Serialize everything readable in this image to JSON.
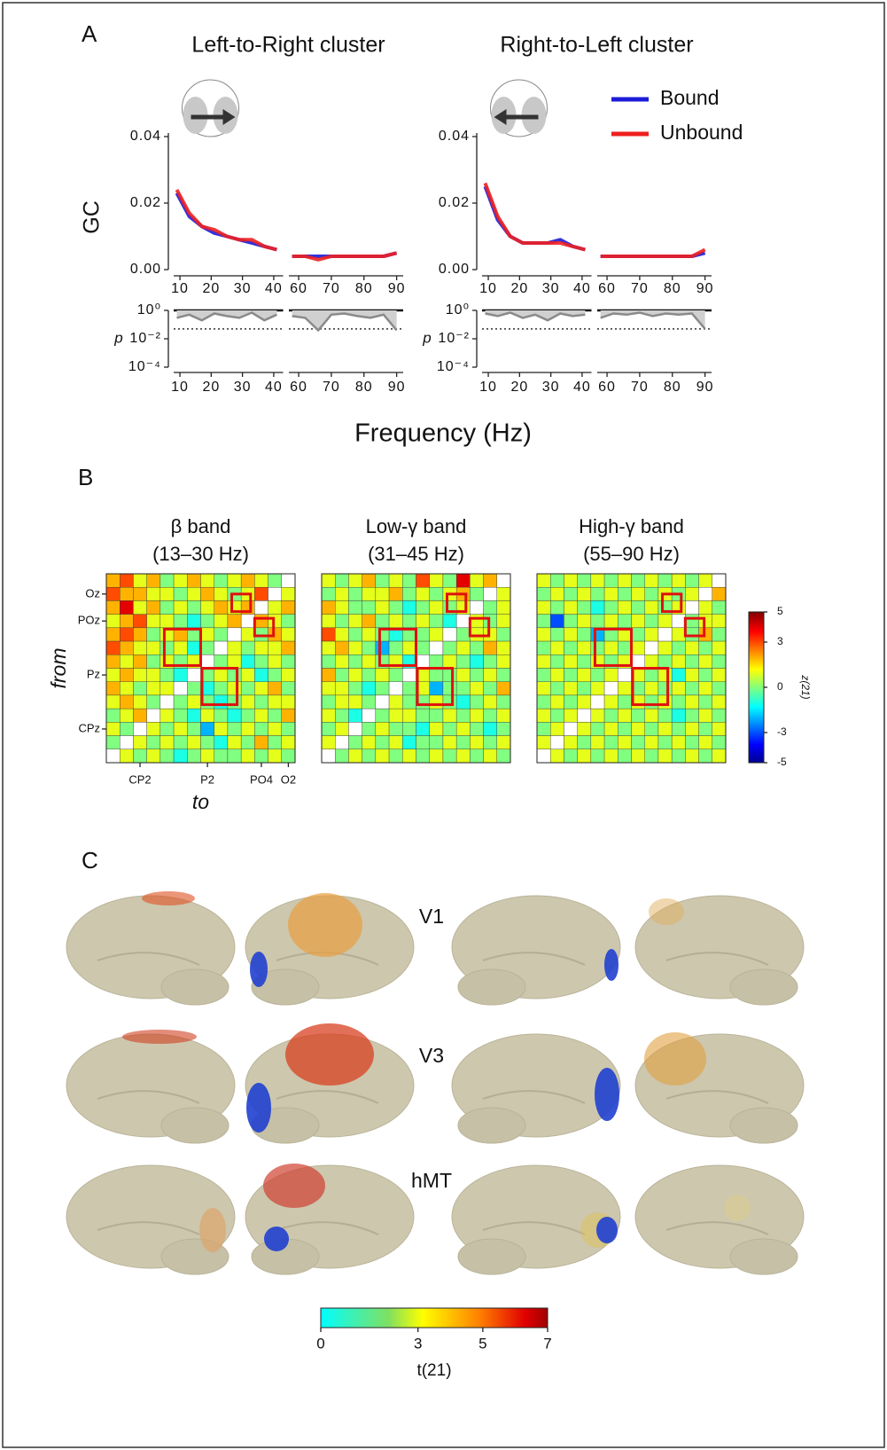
{
  "panel_labels": [
    "A",
    "B",
    "C"
  ],
  "frequency_label": "Frequency (Hz)",
  "chart_data": [
    {
      "type": "line",
      "title": "Left-to-Right cluster",
      "y_label": "GC",
      "x": [
        9,
        13,
        17,
        21,
        25,
        29,
        33,
        37,
        41,
        50,
        58,
        62,
        66,
        70,
        74,
        78,
        82,
        86,
        90
      ],
      "xlim": [
        8,
        92
      ],
      "xbreak": [
        43,
        57
      ],
      "xticks": [
        10,
        20,
        30,
        40,
        60,
        70,
        80,
        90
      ],
      "ylim": [
        0,
        0.04
      ],
      "yticks": [
        {
          "value": 0,
          "label": "0.00"
        },
        {
          "value": 0.02,
          "label": "0.02"
        },
        {
          "value": 0.04,
          "label": "0.04"
        }
      ],
      "series": [
        {
          "color": "#1c1cd8",
          "values": [
            0.023,
            0.016,
            0.013,
            0.011,
            0.01,
            0.009,
            0.008,
            0.007,
            0.006,
            null,
            0.004,
            0.004,
            0.004,
            0.004,
            0.004,
            0.004,
            0.004,
            0.004,
            0.005
          ]
        },
        {
          "color": "#ee2020",
          "values": [
            0.024,
            0.017,
            0.013,
            0.012,
            0.01,
            0.009,
            0.009,
            0.007,
            0.006,
            null,
            0.004,
            0.004,
            0.003,
            0.004,
            0.004,
            0.004,
            0.004,
            0.004,
            0.005
          ]
        }
      ],
      "p_label": "p",
      "p_color": "#8a8a8a",
      "p_log": true,
      "p_threshold": 0.05,
      "p_ylim": [
        0.0001,
        1
      ],
      "p_yticks": [
        {
          "value": 1,
          "label": "10⁰"
        },
        {
          "value": 0.01,
          "label": "10⁻²"
        },
        {
          "value": 0.0001,
          "label": "10⁻⁴"
        }
      ],
      "p_values": [
        0.3,
        0.5,
        0.2,
        0.6,
        0.4,
        0.3,
        0.7,
        0.2,
        0.5,
        null,
        0.4,
        0.3,
        0.04,
        0.5,
        0.6,
        0.4,
        0.3,
        0.5,
        0.04
      ]
    },
    {
      "type": "line",
      "title": "Right-to-Left cluster",
      "x": [
        9,
        13,
        17,
        21,
        25,
        29,
        33,
        37,
        41,
        50,
        58,
        62,
        66,
        70,
        74,
        78,
        82,
        86,
        90
      ],
      "xlim": [
        8,
        92
      ],
      "xbreak": [
        43,
        57
      ],
      "xticks": [
        10,
        20,
        30,
        40,
        60,
        70,
        80,
        90
      ],
      "ylim": [
        0,
        0.04
      ],
      "yticks": [
        {
          "value": 0,
          "label": "0.00"
        },
        {
          "value": 0.02,
          "label": "0.02"
        },
        {
          "value": 0.04,
          "label": "0.04"
        }
      ],
      "series": [
        {
          "name": "Bound",
          "color": "#1c1cd8",
          "values": [
            0.025,
            0.015,
            0.01,
            0.008,
            0.008,
            0.008,
            0.009,
            0.007,
            0.006,
            null,
            0.004,
            0.004,
            0.004,
            0.004,
            0.004,
            0.004,
            0.004,
            0.004,
            0.005
          ]
        },
        {
          "name": "Unbound",
          "color": "#ee2020",
          "values": [
            0.026,
            0.016,
            0.01,
            0.008,
            0.008,
            0.008,
            0.008,
            0.007,
            0.006,
            null,
            0.004,
            0.004,
            0.004,
            0.004,
            0.004,
            0.004,
            0.004,
            0.004,
            0.006
          ]
        }
      ],
      "p_label": "p",
      "p_color": "#8a8a8a",
      "p_log": true,
      "p_threshold": 0.05,
      "p_ylim": [
        0.0001,
        1
      ],
      "p_yticks": [
        {
          "value": 1,
          "label": "10⁰"
        },
        {
          "value": 0.01,
          "label": "10⁻²"
        },
        {
          "value": 0.0001,
          "label": "10⁻⁴"
        }
      ],
      "p_values": [
        0.6,
        0.4,
        0.7,
        0.3,
        0.5,
        0.2,
        0.6,
        0.4,
        0.5,
        null,
        0.3,
        0.6,
        0.5,
        0.7,
        0.4,
        0.6,
        0.5,
        0.6,
        0.05
      ]
    },
    {
      "type": "heatmap",
      "title": "β band",
      "subtitle": "(13–30 Hz)",
      "x_label": "to",
      "y_label": "from",
      "x_categories": [
        null,
        null,
        "CP2",
        null,
        null,
        null,
        null,
        "P2",
        null,
        null,
        null,
        "PO4",
        null,
        "O2"
      ],
      "y_categories": [
        null,
        "Oz",
        null,
        "POz",
        null,
        null,
        null,
        "Pz",
        null,
        null,
        null,
        "CPz",
        null,
        null
      ],
      "values": [
        [
          2,
          3,
          1,
          2,
          0,
          1,
          2,
          1,
          0,
          1,
          2,
          1,
          0,
          null
        ],
        [
          3,
          2,
          2,
          1,
          1,
          0,
          1,
          2,
          1,
          0,
          1,
          3,
          null,
          1
        ],
        [
          2,
          4,
          1,
          2,
          0,
          1,
          0,
          1,
          2,
          1,
          2,
          null,
          1,
          2
        ],
        [
          1,
          2,
          3,
          1,
          1,
          0,
          -1,
          0,
          1,
          2,
          null,
          2,
          1,
          0
        ],
        [
          2,
          3,
          2,
          0,
          1,
          2,
          0,
          1,
          0,
          null,
          1,
          0,
          2,
          1
        ],
        [
          3,
          2,
          1,
          1,
          0,
          1,
          -1,
          0,
          null,
          1,
          0,
          1,
          1,
          2
        ],
        [
          2,
          1,
          2,
          0,
          1,
          0,
          1,
          null,
          0,
          1,
          -1,
          0,
          1,
          0
        ],
        [
          1,
          2,
          1,
          1,
          0,
          -1,
          null,
          0,
          1,
          0,
          1,
          -1,
          0,
          1
        ],
        [
          2,
          1,
          0,
          1,
          1,
          null,
          0,
          -1,
          0,
          1,
          0,
          1,
          2,
          0
        ],
        [
          1,
          2,
          1,
          0,
          null,
          0,
          1,
          0,
          -1,
          0,
          1,
          0,
          1,
          1
        ],
        [
          0,
          1,
          2,
          null,
          1,
          0,
          -1,
          1,
          0,
          -1,
          0,
          1,
          0,
          2
        ],
        [
          1,
          0,
          null,
          1,
          0,
          1,
          0,
          -2,
          1,
          0,
          1,
          0,
          1,
          0
        ],
        [
          0,
          null,
          1,
          0,
          1,
          0,
          1,
          0,
          -1,
          1,
          0,
          2,
          0,
          1
        ],
        [
          null,
          1,
          0,
          1,
          0,
          -1,
          0,
          1,
          0,
          0,
          1,
          0,
          1,
          0
        ]
      ]
    },
    {
      "type": "heatmap",
      "title": "Low-γ band",
      "subtitle": "(31–45 Hz)",
      "values": [
        [
          1,
          0,
          1,
          2,
          0,
          1,
          0,
          3,
          1,
          0,
          4,
          1,
          2,
          null
        ],
        [
          0,
          1,
          0,
          1,
          1,
          2,
          0,
          1,
          0,
          1,
          2,
          0,
          null,
          1
        ],
        [
          2,
          1,
          0,
          0,
          1,
          0,
          -1,
          0,
          1,
          0,
          1,
          null,
          0,
          1
        ],
        [
          1,
          0,
          1,
          2,
          0,
          1,
          0,
          1,
          0,
          -1,
          null,
          1,
          0,
          1
        ],
        [
          3,
          1,
          0,
          1,
          0,
          -1,
          0,
          0,
          1,
          null,
          0,
          1,
          1,
          0
        ],
        [
          1,
          2,
          1,
          0,
          -2,
          0,
          1,
          0,
          null,
          0,
          1,
          0,
          2,
          1
        ],
        [
          0,
          1,
          0,
          1,
          0,
          1,
          -1,
          null,
          0,
          1,
          0,
          -1,
          0,
          1
        ],
        [
          2,
          0,
          1,
          0,
          1,
          0,
          null,
          1,
          0,
          0,
          1,
          0,
          1,
          0
        ],
        [
          1,
          1,
          0,
          -1,
          0,
          null,
          0,
          1,
          -2,
          0,
          0,
          1,
          0,
          2
        ],
        [
          0,
          1,
          1,
          0,
          null,
          1,
          0,
          0,
          1,
          0,
          -1,
          0,
          1,
          0
        ],
        [
          1,
          0,
          -1,
          null,
          0,
          1,
          1,
          0,
          0,
          1,
          0,
          1,
          0,
          1
        ],
        [
          0,
          1,
          null,
          0,
          1,
          0,
          0,
          -1,
          1,
          0,
          1,
          0,
          -1,
          0
        ],
        [
          1,
          null,
          0,
          1,
          0,
          1,
          -1,
          0,
          0,
          1,
          0,
          1,
          0,
          1
        ],
        [
          null,
          0,
          1,
          0,
          1,
          0,
          1,
          0,
          1,
          0,
          1,
          0,
          1,
          0
        ]
      ]
    },
    {
      "type": "heatmap",
      "title": "High-γ band",
      "subtitle": "(55–90 Hz)",
      "values": [
        [
          1,
          0,
          1,
          0,
          1,
          0,
          1,
          0,
          1,
          0,
          1,
          0,
          1,
          null
        ],
        [
          0,
          1,
          0,
          1,
          0,
          1,
          0,
          1,
          0,
          1,
          0,
          1,
          null,
          2
        ],
        [
          1,
          0,
          1,
          0,
          -1,
          0,
          1,
          0,
          1,
          0,
          1,
          null,
          1,
          0
        ],
        [
          0,
          -3,
          0,
          1,
          0,
          1,
          0,
          1,
          0,
          1,
          null,
          0,
          1,
          1
        ],
        [
          1,
          0,
          1,
          0,
          -2,
          0,
          1,
          0,
          1,
          null,
          1,
          0,
          2,
          0
        ],
        [
          0,
          1,
          0,
          1,
          0,
          1,
          0,
          1,
          null,
          1,
          0,
          1,
          0,
          1
        ],
        [
          1,
          0,
          1,
          0,
          1,
          0,
          1,
          null,
          1,
          0,
          1,
          0,
          1,
          0
        ],
        [
          0,
          1,
          0,
          1,
          0,
          1,
          null,
          1,
          0,
          1,
          -1,
          1,
          0,
          1
        ],
        [
          1,
          0,
          1,
          0,
          1,
          null,
          1,
          0,
          1,
          0,
          1,
          0,
          1,
          0
        ],
        [
          0,
          1,
          0,
          1,
          null,
          1,
          0,
          1,
          0,
          1,
          0,
          1,
          0,
          1
        ],
        [
          1,
          0,
          1,
          null,
          1,
          0,
          1,
          0,
          1,
          0,
          -1,
          0,
          1,
          0
        ],
        [
          0,
          1,
          null,
          1,
          0,
          1,
          0,
          1,
          0,
          1,
          0,
          1,
          0,
          1
        ],
        [
          1,
          null,
          1,
          0,
          1,
          0,
          1,
          0,
          1,
          0,
          1,
          0,
          1,
          0
        ],
        [
          null,
          1,
          0,
          1,
          0,
          1,
          0,
          1,
          0,
          1,
          0,
          1,
          0,
          1
        ]
      ]
    }
  ],
  "heatmap_colorbar": {
    "label": "z(21)",
    "lim": [
      -5,
      5
    ],
    "ticks": [
      5,
      3,
      0,
      -3,
      -5
    ]
  },
  "brain_panel": {
    "rows": [
      "V1",
      "V3",
      "hMT"
    ],
    "colorbar": {
      "label": "t(21)",
      "lim": [
        0,
        7
      ],
      "ticks": [
        0,
        3,
        5,
        7
      ]
    }
  }
}
